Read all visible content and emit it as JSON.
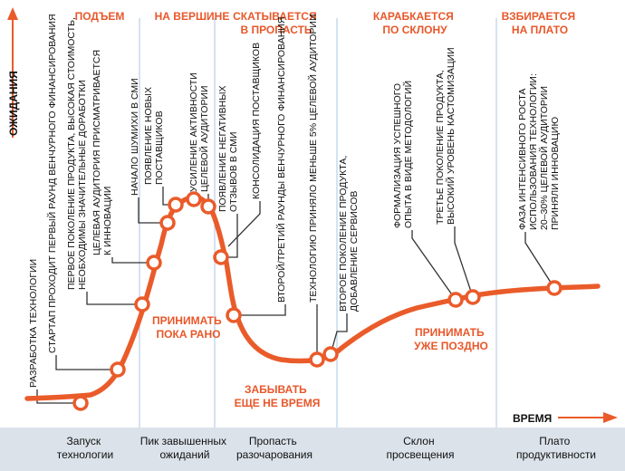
{
  "axes": {
    "y_label": "ОЖИДАНИЯ",
    "x_label": "ВРЕМЯ"
  },
  "phases": [
    {
      "lines": [
        "ПОДЪЕМ"
      ]
    },
    {
      "lines": [
        "НА ВЕРШИНЕ"
      ]
    },
    {
      "lines": [
        "СКАТЫВАЕТСЯ",
        "В ПРОПАСТЬ"
      ]
    },
    {
      "lines": [
        "КАРАБКАЕТСЯ",
        "ПО СКЛОНУ"
      ]
    },
    {
      "lines": [
        "ВЗБИРАЕТСЯ",
        "НА ПЛАТО"
      ]
    }
  ],
  "stages": [
    {
      "lines": [
        "Запуск",
        "технологии"
      ]
    },
    {
      "lines": [
        "Пик завышенных",
        "ожиданий"
      ]
    },
    {
      "lines": [
        "Пропасть",
        "разочарования"
      ]
    },
    {
      "lines": [
        "Склон",
        "просвещения"
      ]
    },
    {
      "lines": [
        "Плато",
        "продуктивности"
      ]
    }
  ],
  "zones": [
    {
      "lines": [
        "ПРИНИМАТЬ",
        "ПОКА РАНО"
      ]
    },
    {
      "lines": [
        "ЗАБЫВАТЬ",
        "ЕЩЕ НЕ ВРЕМЯ"
      ]
    },
    {
      "lines": [
        "ПРИНИМАТЬ",
        "УЖЕ ПОЗДНО"
      ]
    }
  ],
  "notes": [
    {
      "lines": [
        "РАЗРАБОТКА ТЕХНОЛОГИИ"
      ]
    },
    {
      "lines": [
        "СТАРТАП ПРОХОДИТ ПЕРВЫЙ РАУНД ВЕНЧУРНОГО ФИНАНСИРОВАНИЯ"
      ]
    },
    {
      "lines": [
        "ПЕРВОЕ ПОКОЛЕНИЕ ПРОДУКТА, ВЫСОКАЯ СТОИМОСТЬ,",
        "НЕОБХОДИМЫ ЗНАЧИТЕЛЬНЫЕ ДОРАБОТКИ"
      ]
    },
    {
      "lines": [
        "ЦЕЛЕВАЯ АУДИТОРИЯ ПРИСМАТРИВАЕТСЯ",
        "К ИННОВАЦИИ"
      ]
    },
    {
      "lines": [
        "НАЧАЛО ШУМИХИ В СМИ"
      ]
    },
    {
      "lines": [
        "ПОЯВЛЕНИЕ НОВЫХ",
        "ПОСТАВЩИКОВ"
      ]
    },
    {
      "lines": [
        "УСИЛЕНИЕ АКТИВНОСТИ",
        "ЦЕЛЕВОЙ АУДИТОРИИ"
      ]
    },
    {
      "lines": [
        "ПОЯВЛЕНИЕ НЕГАТИВНЫХ",
        "ОТЗЫВОВ В СМИ"
      ]
    },
    {
      "lines": [
        "КОНСОЛИДАЦИЯ ПОСТАВЩИКОВ"
      ]
    },
    {
      "lines": [
        "ВТОРОЙ/ТРЕТИЙ РАУНДЫ ВЕНЧУРНОГО ФИНАНСИРОВАНИЯ"
      ]
    },
    {
      "lines": [
        "ТЕХНОЛОГИЮ ПРИНЯЛО МЕНЬШЕ 5% ЦЕЛЕВОЙ АУДИТОРИИ"
      ]
    },
    {
      "lines": [
        "ВТОРОЕ ПОКОЛЕНИЕ ПРОДУКТА,",
        "ДОБАВЛЕНИЕ СЕРВИСОВ"
      ]
    },
    {
      "lines": [
        "ФОРМАЛИЗАЦИЯ УСПЕШНОГО",
        "ОПЫТА В ВИДЕ МЕТОДОЛОГИЙ"
      ]
    },
    {
      "lines": [
        "ТРЕТЬЕ ПОКОЛЕНИЕ ПРОДУКТА,",
        "ВЫСОКИЙ УРОВЕНЬ КАСТОМИЗАЦИИ"
      ]
    },
    {
      "lines": [
        "ФАЗА ИНТЕНСИВНОГО РОСТА",
        "ИСПОЛЬЗОВАНИЯ ТЕХНОЛОГИИ:",
        "20–30% ЦЕЛЕВОЙ АУДИТОРИИ",
        "ПРИНЯЛИ ИННОВАЦИЮ"
      ]
    }
  ]
}
